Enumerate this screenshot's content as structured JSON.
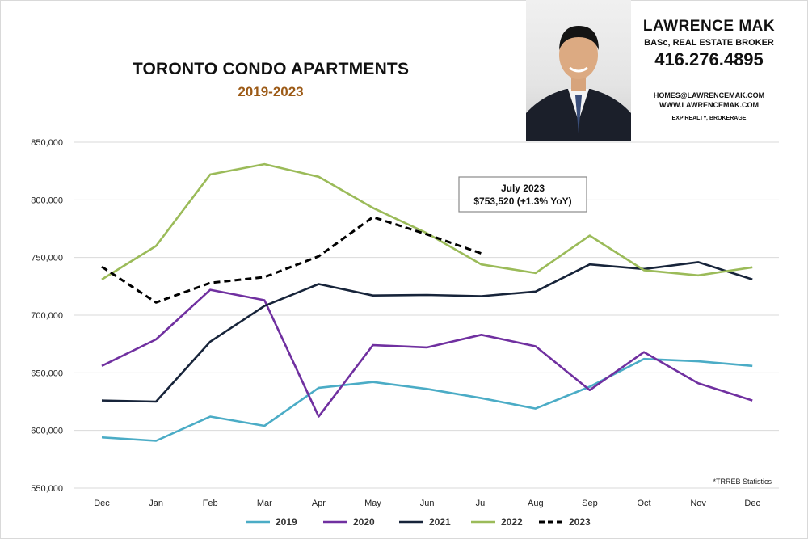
{
  "header": {
    "title": "TORONTO CONDO APARTMENTS",
    "subtitle": "2019-2023"
  },
  "agent": {
    "name": "LAWRENCE MAK",
    "role": "BASc, REAL ESTATE BROKER",
    "phone": "416.276.4895",
    "email": "HOMES@LAWRENCEMAK.COM",
    "website": "WWW.LAWRENCEMAK.COM",
    "brokerage": "EXP REALTY, BROKERAGE"
  },
  "callout": {
    "line1": "July 2023",
    "line2": "$753,520  (+1.3%  YoY)"
  },
  "source_note": "*TRREB Statistics",
  "chart_data": {
    "type": "line",
    "title": "TORONTO CONDO APARTMENTS",
    "subtitle": "2019-2023",
    "categories": [
      "Dec",
      "Jan",
      "Feb",
      "Mar",
      "Apr",
      "May",
      "Jun",
      "Jul",
      "Aug",
      "Sep",
      "Oct",
      "Nov",
      "Dec"
    ],
    "yticks": [
      "550,000",
      "600,000",
      "650,000",
      "700,000",
      "750,000",
      "800,000",
      "850,000"
    ],
    "ylim": [
      550000,
      850000
    ],
    "grid": true,
    "legend_position": "bottom",
    "series": [
      {
        "name": "2019",
        "color": "#4bacc6",
        "dashed": false,
        "values": [
          594000,
          591000,
          612000,
          604000,
          637000,
          642000,
          636000,
          628000,
          619000,
          638000,
          662000,
          660000,
          656000
        ]
      },
      {
        "name": "2020",
        "color": "#7030a0",
        "dashed": false,
        "values": [
          656000,
          679000,
          722000,
          713000,
          612000,
          674000,
          672000,
          683000,
          673000,
          635000,
          668000,
          641000,
          626000
        ]
      },
      {
        "name": "2021",
        "color": "#17243a",
        "dashed": false,
        "values": [
          626000,
          625000,
          677000,
          708000,
          727000,
          717000,
          717500,
          716500,
          720500,
          744000,
          740000,
          746000,
          731000
        ]
      },
      {
        "name": "2022",
        "color": "#9bbb59",
        "dashed": false,
        "values": [
          731000,
          760000,
          822000,
          831000,
          820000,
          793000,
          771000,
          744000,
          736500,
          769000,
          739000,
          734500,
          741500
        ]
      },
      {
        "name": "2023",
        "color": "#000000",
        "dashed": true,
        "values": [
          742000,
          711000,
          728000,
          733000,
          751000,
          785000,
          770000,
          753520,
          null,
          null,
          null,
          null,
          null
        ]
      }
    ]
  }
}
